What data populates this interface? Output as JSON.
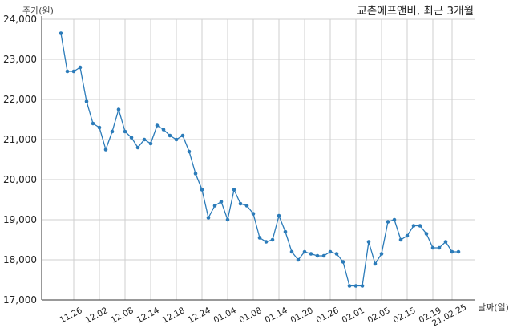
{
  "chart_data": {
    "type": "line",
    "title": "교촌에프앤비, 최근 3개월",
    "ylabel": "주가(원)",
    "xlabel": "날짜(일)",
    "ylim": [
      17000,
      24000
    ],
    "yticks": [
      "17,000",
      "18,000",
      "19,000",
      "20,000",
      "21,000",
      "22,000",
      "23,000",
      "24,000"
    ],
    "ytick_values": [
      17000,
      18000,
      19000,
      20000,
      21000,
      22000,
      23000,
      24000
    ],
    "xticks": [
      "11.26",
      "12.02",
      "12.08",
      "12.14",
      "12.18",
      "12.24",
      "01.04",
      "01.08",
      "01.14",
      "01.20",
      "01.26",
      "02.01",
      "02.05",
      "02.15",
      "02.19",
      "21.02.25"
    ],
    "xtick_index": [
      2,
      6,
      10,
      14,
      18,
      22,
      26,
      30,
      34,
      38,
      42,
      46,
      50,
      54,
      58,
      61
    ],
    "grid": true,
    "line_color": "#2b7bb9",
    "series": [
      {
        "values": [
          23650,
          22700,
          22700,
          22800,
          21950,
          21400,
          21300,
          20750,
          21200,
          21750,
          21200,
          21050,
          20800,
          21000,
          20900,
          21350,
          21250,
          21100,
          21000,
          21100,
          20700,
          20150,
          19750,
          19050,
          19350,
          19450,
          19000,
          19750,
          19400,
          19350,
          19150,
          18550,
          18450,
          18500,
          19100,
          18700,
          18200,
          18000,
          18200,
          18150,
          18100,
          18100,
          18200,
          18150,
          17950,
          17350,
          17350,
          17350,
          18450,
          17900,
          18150,
          18950,
          19000,
          18500,
          18600,
          18850,
          18850,
          18650,
          18300,
          18300,
          18450,
          18200,
          18200
        ]
      }
    ]
  }
}
